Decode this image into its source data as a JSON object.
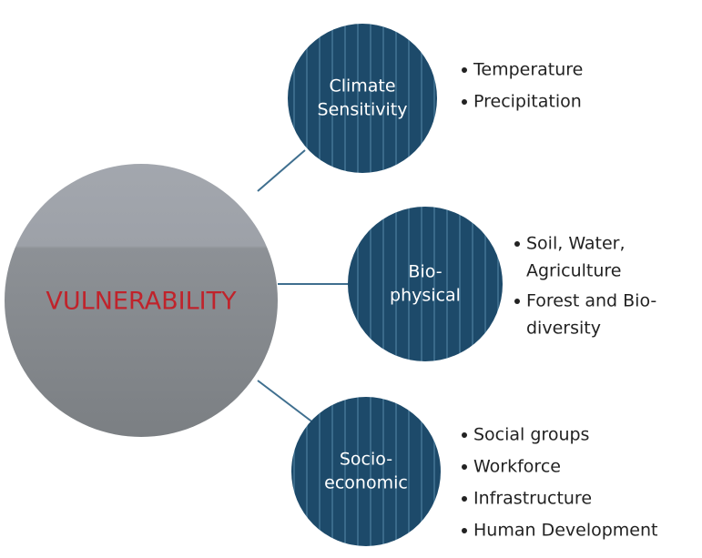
{
  "center": {
    "label": "VULNERABILITY"
  },
  "nodes": [
    {
      "label": [
        "Climate",
        "Sensitivity"
      ],
      "bullets": [
        [
          "Temperature"
        ],
        [
          "Precipitation"
        ]
      ]
    },
    {
      "label": [
        "Bio-",
        "physical"
      ],
      "bullets": [
        [
          "Soil, Water,",
          "Agriculture"
        ],
        [
          "Forest and Bio-",
          "diversity"
        ]
      ]
    },
    {
      "label": [
        "Socio-",
        "economic"
      ],
      "bullets": [
        [
          "Social groups"
        ],
        [
          "Workforce"
        ],
        [
          "Infrastructure"
        ],
        [
          "Human Development"
        ]
      ]
    }
  ]
}
